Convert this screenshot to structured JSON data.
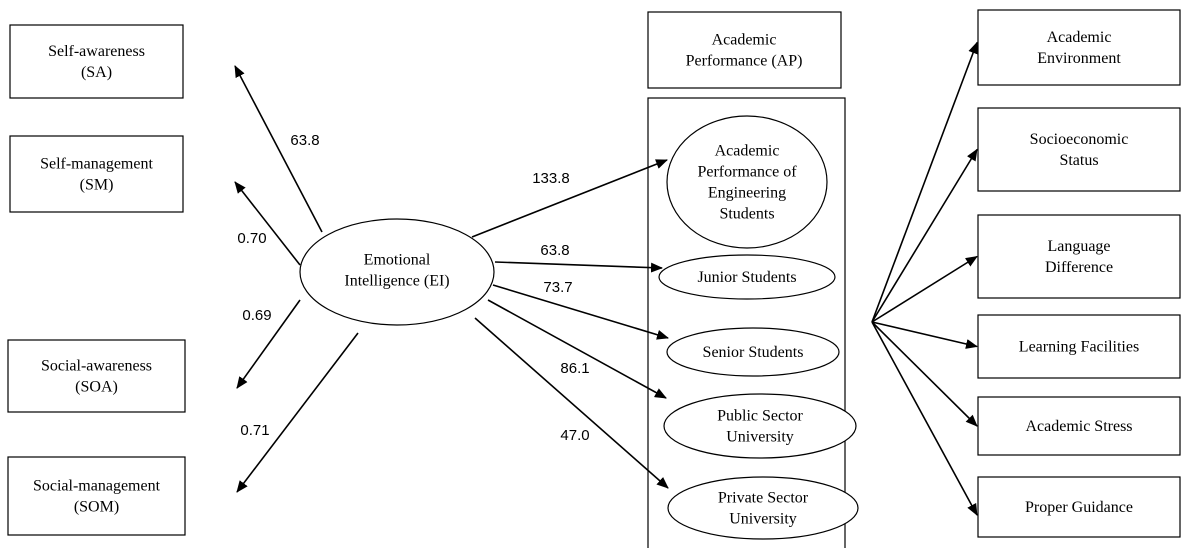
{
  "emotional_intelligence": {
    "label": [
      "Emotional",
      "Intelligence (EI)"
    ]
  },
  "ei_components": [
    {
      "label": [
        "Self-awareness",
        "(SA)"
      ],
      "edge_label": "63.8"
    },
    {
      "label": [
        "Self-management",
        "(SM)"
      ],
      "edge_label": "0.70"
    },
    {
      "label": [
        "Social-awareness",
        "(SOA)"
      ],
      "edge_label": "0.69"
    },
    {
      "label": [
        "Social-management",
        "(SOM)"
      ],
      "edge_label": "0.71"
    }
  ],
  "academic_performance": {
    "title": [
      "Academic",
      "Performance (AP)"
    ],
    "groups": [
      {
        "label": [
          "Academic",
          "Performance of",
          "Engineering",
          "Students"
        ],
        "edge_label": "133.8"
      },
      {
        "label": [
          "Junior Students"
        ],
        "edge_label": "63.8"
      },
      {
        "label": [
          "Senior Students"
        ],
        "edge_label": "73.7"
      },
      {
        "label": [
          "Public Sector",
          "University"
        ],
        "edge_label": "86.1"
      },
      {
        "label": [
          "Private Sector",
          "University"
        ],
        "edge_label": "47.0"
      }
    ]
  },
  "factors": [
    {
      "label": [
        "Academic",
        "Environment"
      ]
    },
    {
      "label": [
        "Socioeconomic",
        "Status"
      ]
    },
    {
      "label": [
        "Language",
        "Difference"
      ]
    },
    {
      "label": [
        "Learning Facilities"
      ]
    },
    {
      "label": [
        "Academic Stress"
      ]
    },
    {
      "label": [
        "Proper Guidance"
      ]
    }
  ]
}
